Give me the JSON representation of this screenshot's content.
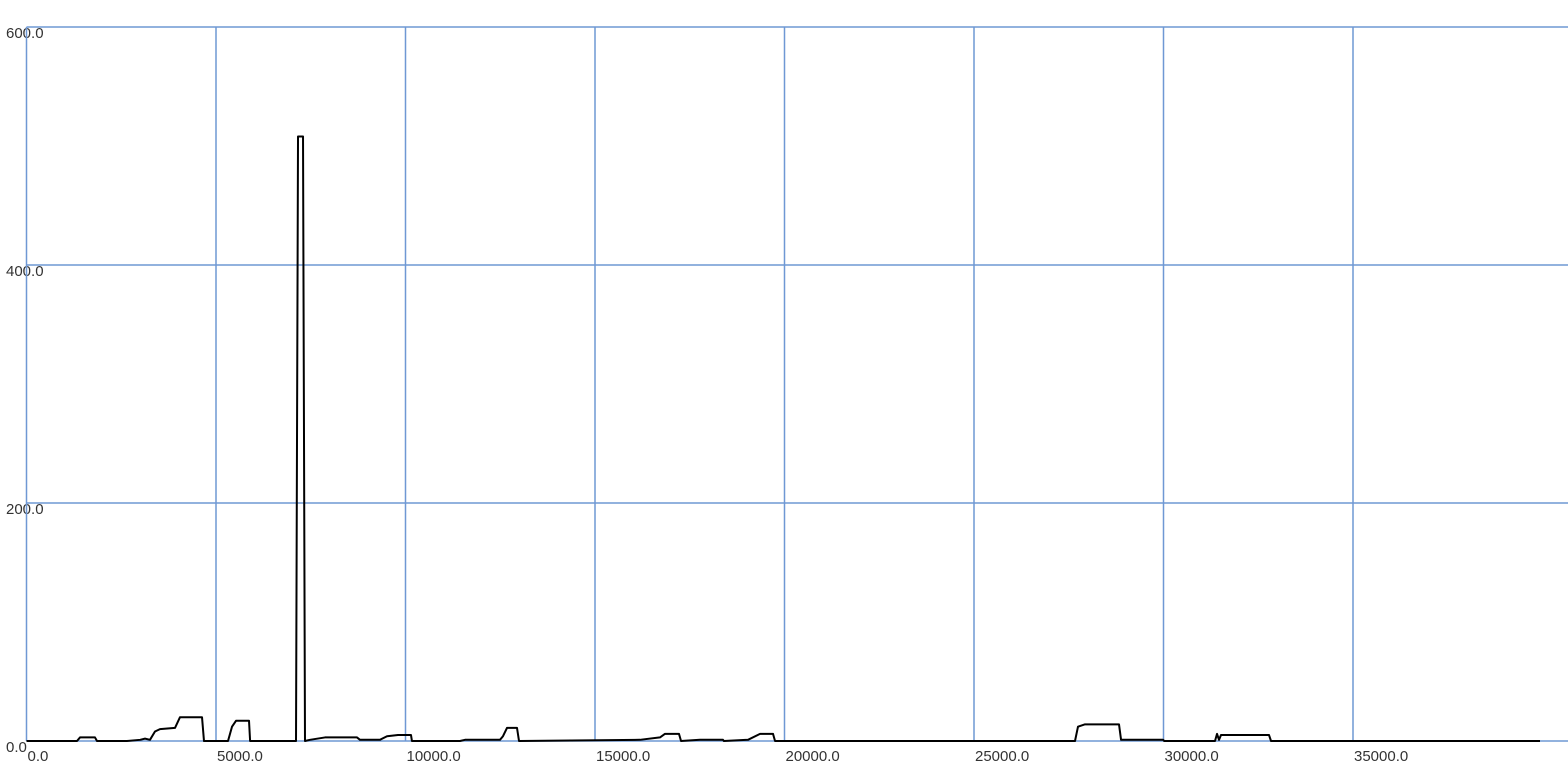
{
  "chart_data": {
    "type": "line",
    "x": [
      0,
      1332,
      1412,
      1807,
      1860,
      2650,
      3000,
      3127,
      3258,
      3390,
      3522,
      3918,
      4050,
      4631,
      4683,
      5317,
      5422,
      5528,
      5871,
      5900,
      7111,
      7164,
      7296,
      7348,
      7480,
      7876,
      8720,
      8799,
      9327,
      9512,
      9802,
      10145,
      10170,
      11438,
      11570,
      12493,
      12572,
      12678,
      12942,
      12995,
      16187,
      16715,
      16847,
      17216,
      17270,
      17770,
      18377,
      18400,
      19037,
      19354,
      19697,
      19750,
      27665,
      27744,
      27929,
      28826,
      28880,
      29989,
      30020,
      31359,
      31412,
      31464,
      31517,
      32784,
      32837,
      39934
    ],
    "series": [
      {
        "color": "#000000",
        "values": [
          0,
          0,
          3,
          3,
          0,
          0,
          1,
          2,
          1,
          8,
          10,
          11,
          20,
          20,
          0,
          0,
          12,
          17,
          17,
          0,
          0,
          508,
          508,
          0,
          1,
          3,
          3,
          1,
          1,
          4,
          5,
          5,
          0,
          0,
          1,
          1,
          4,
          11,
          11,
          0,
          1,
          3,
          6,
          6,
          0,
          1,
          1,
          0,
          1,
          6,
          6,
          0,
          0,
          12,
          14,
          14,
          1,
          1,
          0,
          0,
          6,
          1,
          5,
          5,
          0,
          0
        ]
      }
    ],
    "xlim": [
      0,
      40000
    ],
    "xticks": [
      {
        "value": 0,
        "label": "0.0"
      },
      {
        "value": 5000,
        "label": "5000.0"
      },
      {
        "value": 10000,
        "label": "10000.0"
      },
      {
        "value": 15000,
        "label": "15000.0"
      },
      {
        "value": 20000,
        "label": "20000.0"
      },
      {
        "value": 25000,
        "label": "25000.0"
      },
      {
        "value": 30000,
        "label": "30000.0"
      },
      {
        "value": 35000,
        "label": "35000.0"
      }
    ],
    "ylim": [
      0,
      600
    ],
    "yticks": [
      {
        "value": 0,
        "label": "0.0"
      },
      {
        "value": 200,
        "label": "200.0"
      },
      {
        "value": 400,
        "label": "400.0"
      },
      {
        "value": 600,
        "label": "600.0"
      }
    ],
    "grid": true,
    "grid_color": "#6f98d4"
  }
}
